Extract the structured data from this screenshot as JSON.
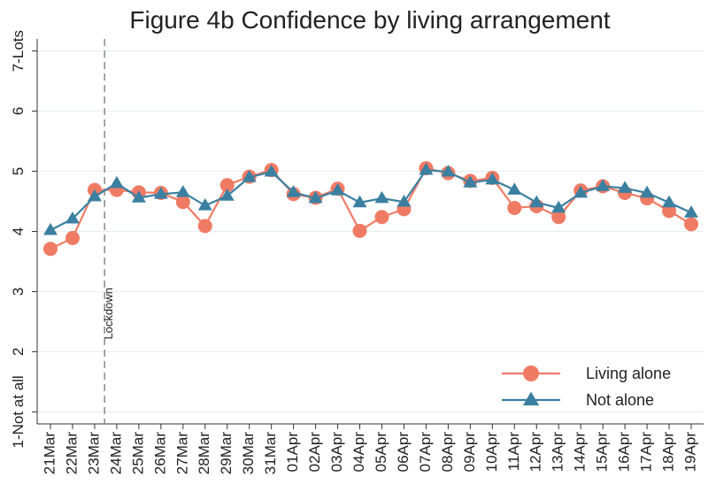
{
  "chart_data": {
    "type": "line",
    "title": "Figure 4b Confidence by living arrangement",
    "categories": [
      "21Mar",
      "22Mar",
      "23Mar",
      "24Mar",
      "25Mar",
      "26Mar",
      "27Mar",
      "28Mar",
      "29Mar",
      "30Mar",
      "31Mar",
      "01Apr",
      "02Apr",
      "03Apr",
      "04Apr",
      "05Apr",
      "06Apr",
      "07Apr",
      "08Apr",
      "09Apr",
      "10Apr",
      "11Apr",
      "12Apr",
      "13Apr",
      "14Apr",
      "15Apr",
      "16Apr",
      "17Apr",
      "18Apr",
      "19Apr"
    ],
    "series": [
      {
        "name": "Living alone",
        "color": "#f07b64",
        "marker": "circle",
        "values": [
          3.71,
          3.89,
          4.69,
          4.69,
          4.65,
          4.64,
          4.49,
          4.09,
          4.77,
          4.91,
          5.02,
          4.62,
          4.56,
          4.71,
          4.01,
          4.24,
          4.37,
          5.05,
          4.97,
          4.84,
          4.89,
          4.39,
          4.42,
          4.24,
          4.68,
          4.75,
          4.64,
          4.55,
          4.34,
          4.12
        ]
      },
      {
        "name": "Not alone",
        "color": "#3b7fa1",
        "marker": "triangle",
        "values": [
          4.02,
          4.21,
          4.58,
          4.8,
          4.56,
          4.62,
          4.65,
          4.43,
          4.59,
          4.9,
          4.99,
          4.65,
          4.55,
          4.68,
          4.48,
          4.55,
          4.49,
          5.02,
          4.99,
          4.81,
          4.86,
          4.69,
          4.48,
          4.39,
          4.64,
          4.75,
          4.72,
          4.64,
          4.48,
          4.31
        ]
      }
    ],
    "ylim": [
      0.8,
      7.2
    ],
    "yticks": [
      {
        "value": 1,
        "label": "1-Not at all"
      },
      2,
      3,
      4,
      5,
      6,
      {
        "value": 7,
        "label": "7-Lots"
      }
    ],
    "grid": true,
    "legend": "lower right",
    "annotation": {
      "text": "Lockdown"
    }
  }
}
